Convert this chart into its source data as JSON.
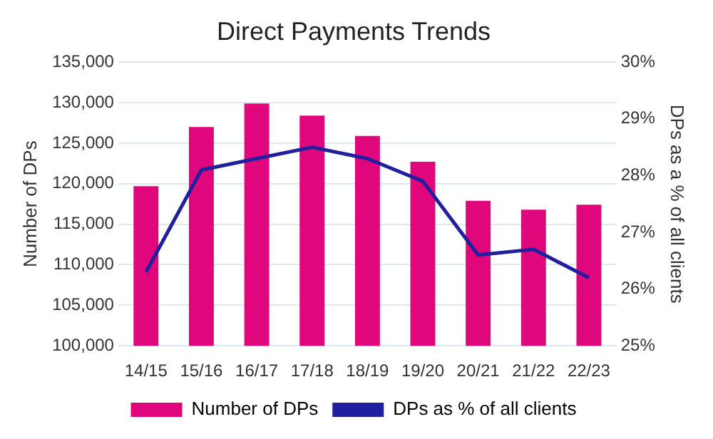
{
  "chart_data": {
    "type": "bar",
    "title": "Direct Payments Trends",
    "ylabel": "Number of DPs",
    "y2label": "DPs as a % of all clients",
    "categories": [
      "14/15",
      "15/16",
      "16/17",
      "17/18",
      "18/19",
      "19/20",
      "20/21",
      "21/22",
      "22/23"
    ],
    "series": [
      {
        "name": "Number of DPs",
        "color": "#e0077d",
        "values": [
          119700,
          127000,
          129900,
          128400,
          125900,
          122700,
          117900,
          116800,
          117400
        ]
      },
      {
        "name": "DPs as % of all clients",
        "type": "line",
        "axis": "y2",
        "color": "#1f1fa0",
        "values": [
          26.3,
          28.1,
          28.3,
          28.5,
          28.3,
          27.9,
          26.6,
          26.7,
          26.2
        ]
      }
    ],
    "ylim": [
      100000,
      135000
    ],
    "yticks": [
      {
        "value": 100000,
        "label": "100,000"
      },
      {
        "value": 105000,
        "label": "105,000"
      },
      {
        "value": 110000,
        "label": "110,000"
      },
      {
        "value": 115000,
        "label": "115,000"
      },
      {
        "value": 120000,
        "label": "120,000"
      },
      {
        "value": 125000,
        "label": "125,000"
      },
      {
        "value": 130000,
        "label": "130,000"
      },
      {
        "value": 135000,
        "label": "135,000"
      }
    ],
    "y2lim": [
      25,
      30
    ],
    "y2ticks": [
      {
        "value": 25,
        "label": "25%"
      },
      {
        "value": 26,
        "label": "26%"
      },
      {
        "value": 27,
        "label": "27%"
      },
      {
        "value": 28,
        "label": "28%"
      },
      {
        "value": 29,
        "label": "29%"
      },
      {
        "value": 30,
        "label": "30%"
      }
    ],
    "grid": "y",
    "legend": "bottom",
    "marker": "none"
  }
}
